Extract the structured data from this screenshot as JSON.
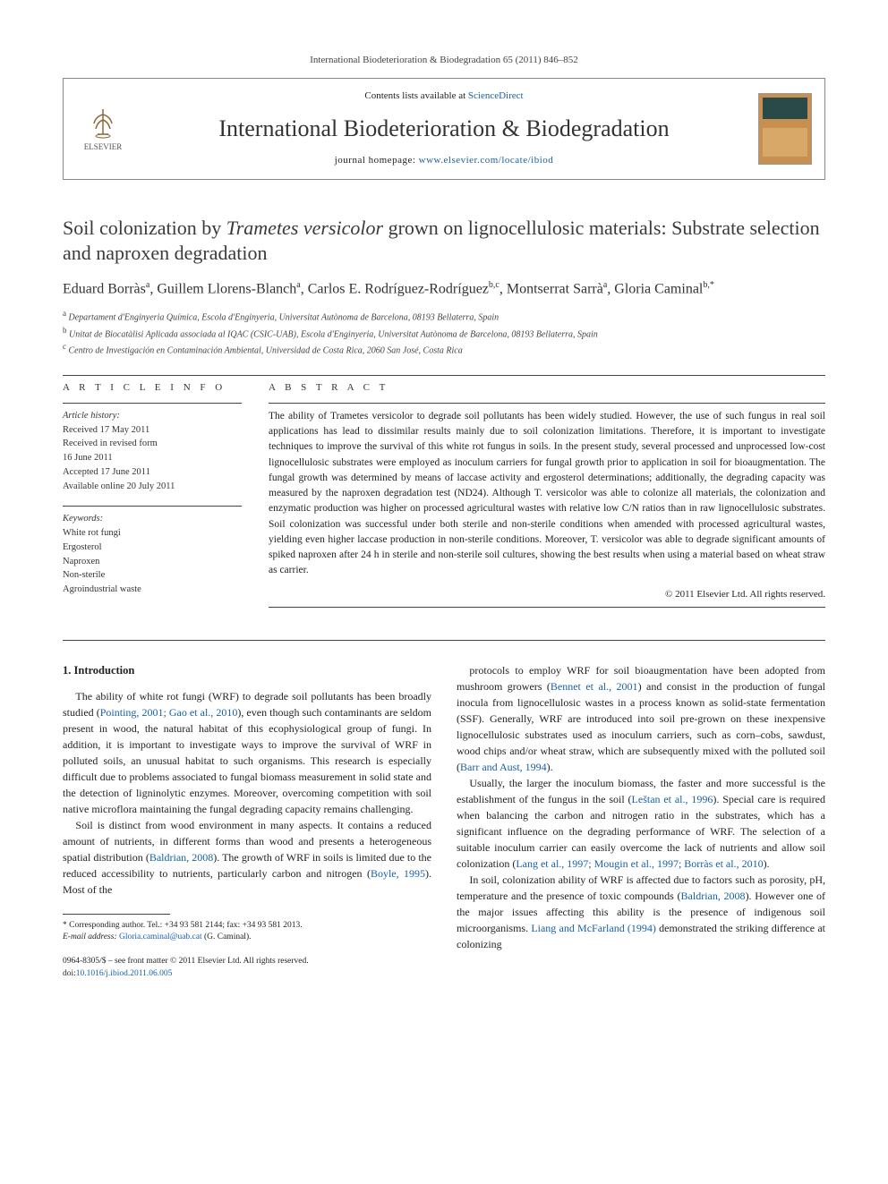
{
  "journal_ref": "International Biodeterioration & Biodegradation 65 (2011) 846–852",
  "header": {
    "contents_prefix": "Contents lists available at ",
    "contents_link": "ScienceDirect",
    "journal_title": "International Biodeterioration & Biodegradation",
    "homepage_prefix": "journal homepage: ",
    "homepage_url": "www.elsevier.com/locate/ibiod",
    "publisher": "ELSEVIER"
  },
  "title_html": "Soil colonization by <em>Trametes versicolor</em> grown on lignocellulosic materials: Substrate selection and naproxen degradation",
  "authors_html": "Eduard Borràs<sup>a</sup>, Guillem Llorens-Blanch<sup>a</sup>, Carlos E. Rodríguez-Rodríguez<sup>b,c</sup>, Montserrat Sarrà<sup>a</sup>, Gloria Caminal<sup>b,*</sup>",
  "affiliations": [
    "<sup>a</sup> Departament d'Enginyeria Química, Escola d'Enginyeria, Universitat Autònoma de Barcelona, 08193 Bellaterra, Spain",
    "<sup>b</sup> Unitat de Biocatàlisi Aplicada associada al IQAC (CSIC-UAB), Escola d'Enginyeria, Universitat Autònoma de Barcelona, 08193 Bellaterra, Spain",
    "<sup>c</sup> Centro de Investigación en Contaminación Ambiental, Universidad de Costa Rica, 2060 San José, Costa Rica"
  ],
  "article_info": {
    "label": "A R T I C L E   I N F O",
    "history_label": "Article history:",
    "history": [
      "Received 17 May 2011",
      "Received in revised form",
      "16 June 2011",
      "Accepted 17 June 2011",
      "Available online 20 July 2011"
    ],
    "keywords_label": "Keywords:",
    "keywords": [
      "White rot fungi",
      "Ergosterol",
      "Naproxen",
      "Non-sterile",
      "Agroindustrial waste"
    ]
  },
  "abstract": {
    "label": "A B S T R A C T",
    "text": "The ability of Trametes versicolor to degrade soil pollutants has been widely studied. However, the use of such fungus in real soil applications has lead to dissimilar results mainly due to soil colonization limitations. Therefore, it is important to investigate techniques to improve the survival of this white rot fungus in soils. In the present study, several processed and unprocessed low-cost lignocellulosic substrates were employed as inoculum carriers for fungal growth prior to application in soil for bioaugmentation. The fungal growth was determined by means of laccase activity and ergosterol determinations; additionally, the degrading capacity was measured by the naproxen degradation test (ND24). Although T. versicolor was able to colonize all materials, the colonization and enzymatic production was higher on processed agricultural wastes with relative low C/N ratios than in raw lignocellulosic substrates. Soil colonization was successful under both sterile and non-sterile conditions when amended with processed agricultural wastes, yielding even higher laccase production in non-sterile conditions. Moreover, T. versicolor was able to degrade significant amounts of spiked naproxen after 24 h in sterile and non-sterile soil cultures, showing the best results when using a material based on wheat straw as carrier.",
    "copyright": "© 2011 Elsevier Ltd. All rights reserved."
  },
  "body": {
    "intro_heading": "1. Introduction",
    "left_paras": [
      "The ability of white rot fungi (WRF) to degrade soil pollutants has been broadly studied (<span class=\"ref-link\">Pointing, 2001; Gao et al., 2010</span>), even though such contaminants are seldom present in wood, the natural habitat of this ecophysiological group of fungi. In addition, it is important to investigate ways to improve the survival of WRF in polluted soils, an unusual habitat to such organisms. This research is especially difficult due to problems associated to fungal biomass measurement in solid state and the detection of ligninolytic enzymes. Moreover, overcoming competition with soil native microflora maintaining the fungal degrading capacity remains challenging.",
      "Soil is distinct from wood environment in many aspects. It contains a reduced amount of nutrients, in different forms than wood and presents a heterogeneous spatial distribution (<span class=\"ref-link\">Baldrian, 2008</span>). The growth of WRF in soils is limited due to the reduced accessibility to nutrients, particularly carbon and nitrogen (<span class=\"ref-link\">Boyle, 1995</span>). Most of the"
    ],
    "right_paras": [
      "protocols to employ WRF for soil bioaugmentation have been adopted from mushroom growers (<span class=\"ref-link\">Bennet et al., 2001</span>) and consist in the production of fungal inocula from lignocellulosic wastes in a process known as solid-state fermentation (SSF). Generally, WRF are introduced into soil pre-grown on these inexpensive lignocellulosic substrates used as inoculum carriers, such as corn–cobs, sawdust, wood chips and/or wheat straw, which are subsequently mixed with the polluted soil (<span class=\"ref-link\">Barr and Aust, 1994</span>).",
      "Usually, the larger the inoculum biomass, the faster and more successful is the establishment of the fungus in the soil (<span class=\"ref-link\">Leštan et al., 1996</span>). Special care is required when balancing the carbon and nitrogen ratio in the substrates, which has a significant influence on the degrading performance of WRF. The selection of a suitable inoculum carrier can easily overcome the lack of nutrients and allow soil colonization (<span class=\"ref-link\">Lang et al., 1997; Mougin et al., 1997; Borràs et al., 2010</span>).",
      "In soil, colonization ability of WRF is affected due to factors such as porosity, pH, temperature and the presence of toxic compounds (<span class=\"ref-link\">Baldrian, 2008</span>). However one of the major issues affecting this ability is the presence of indigenous soil microorganisms. <span class=\"ref-link\">Liang and McFarland (1994)</span> demonstrated the striking difference at colonizing"
    ]
  },
  "footnotes": {
    "corr": "* Corresponding author. Tel.: +34 93 581 2144; fax: +34 93 581 2013.",
    "email_label": "E-mail address: ",
    "email": "Gloria.caminal@uab.cat",
    "email_suffix": " (G. Caminal)."
  },
  "bottom": {
    "issn_line": "0964-8305/$ – see front matter © 2011 Elsevier Ltd. All rights reserved.",
    "doi_prefix": "doi:",
    "doi": "10.1016/j.ibiod.2011.06.005"
  }
}
